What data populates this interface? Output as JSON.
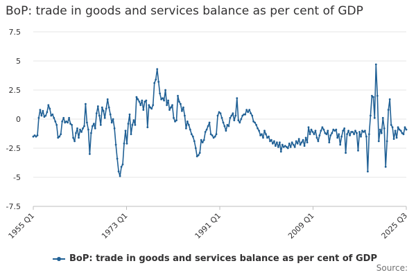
{
  "chart_data": {
    "type": "line",
    "title": "BoP: trade in goods and services balance as per cent of GDP",
    "xlabel": "",
    "ylabel": "",
    "x_start": "1955 Q1",
    "x_end": "2025 Q3",
    "x_tick_labels": [
      "1955 Q1",
      "1973 Q1",
      "1991 Q1",
      "2009 Q1",
      "2025 Q3"
    ],
    "y_tick_labels": [
      "7.5",
      "5",
      "2.5",
      "0",
      "-2.5",
      "-5",
      "-7.5"
    ],
    "ylim": [
      -7.5,
      7.5
    ],
    "grid": true,
    "legend_position": "bottom",
    "color": "#206095",
    "series": [
      {
        "name": "BoP: trade in goods and services balance as per cent of GDP",
        "values": [
          -1.5,
          -1.4,
          -1.5,
          -1.4,
          0.1,
          0.8,
          0.3,
          0.7,
          0.2,
          0.3,
          0.6,
          1.2,
          0.9,
          0.3,
          0.4,
          0.1,
          -0.2,
          -0.5,
          -1.6,
          -1.5,
          -1.3,
          -0.2,
          0.1,
          -0.3,
          -0.2,
          -0.3,
          0.1,
          -0.4,
          -0.5,
          -1.6,
          -1.9,
          -1.2,
          -0.8,
          -1.6,
          -0.9,
          -1.1,
          -0.8,
          -0.6,
          1.3,
          -0.3,
          -0.9,
          -3.0,
          -1.2,
          -0.6,
          -0.4,
          -0.8,
          0.5,
          1.1,
          0.3,
          -0.5,
          1.0,
          0.7,
          0.1,
          0.9,
          1.7,
          1.0,
          0.4,
          -0.3,
          0.0,
          -0.8,
          -2.2,
          -3.4,
          -4.5,
          -4.9,
          -4.1,
          -3.9,
          -2.1,
          -1.0,
          -2.1,
          -0.4,
          0.4,
          -1.3,
          -0.5,
          -0.1,
          -0.5,
          1.9,
          1.7,
          1.5,
          1.2,
          1.6,
          0.8,
          1.5,
          1.6,
          -0.7,
          1.2,
          1.0,
          0.9,
          1.2,
          3.1,
          3.4,
          4.3,
          3.2,
          2.2,
          1.7,
          1.8,
          1.6,
          2.5,
          1.2,
          1.6,
          0.8,
          1.0,
          1.2,
          0.1,
          -0.2,
          -0.1,
          2.0,
          1.5,
          1.3,
          0.7,
          1.0,
          0.3,
          -0.8,
          -0.2,
          -0.5,
          -0.9,
          -1.3,
          -1.5,
          -1.9,
          -2.5,
          -3.2,
          -3.1,
          -2.9,
          -1.8,
          -2.0,
          -1.8,
          -1.1,
          -0.9,
          -0.6,
          -0.3,
          -1.3,
          -1.4,
          -1.6,
          -1.5,
          -1.3,
          0.3,
          0.6,
          0.5,
          0.1,
          -0.3,
          -0.6,
          -1.0,
          -0.5,
          -0.6,
          0.1,
          0.3,
          0.5,
          -0.1,
          0.3,
          1.8,
          -0.1,
          -0.3,
          0.0,
          0.3,
          0.4,
          0.4,
          0.8,
          0.6,
          0.8,
          0.5,
          0.3,
          -0.2,
          -0.3,
          -0.5,
          -0.8,
          -1.0,
          -1.4,
          -1.3,
          -1.6,
          -1.0,
          -1.3,
          -1.6,
          -1.5,
          -1.9,
          -1.8,
          -2.1,
          -1.9,
          -2.3,
          -2.0,
          -2.4,
          -2.0,
          -2.8,
          -2.2,
          -2.4,
          -2.3,
          -2.4,
          -2.5,
          -2.1,
          -2.4,
          -2.0,
          -2.2,
          -2.4,
          -1.9,
          -2.1,
          -1.7,
          -2.2,
          -2.0,
          -1.8,
          -2.3,
          -1.6,
          -2.0,
          -0.7,
          -1.3,
          -0.9,
          -1.1,
          -1.3,
          -1.0,
          -1.6,
          -1.9,
          -1.4,
          -1.0,
          -0.7,
          -0.9,
          -1.2,
          -1.3,
          -1.0,
          -2.0,
          -1.4,
          -1.2,
          -0.9,
          -1.0,
          -0.9,
          -1.6,
          -1.3,
          -2.2,
          -1.5,
          -1.0,
          -0.8,
          -2.9,
          -1.3,
          -1.0,
          -1.4,
          -1.1,
          -1.1,
          -1.3,
          -1.0,
          -1.2,
          -2.7,
          -1.1,
          -1.5,
          -1.0,
          -1.1,
          -1.0,
          -1.5,
          -4.5,
          -1.3,
          0.3,
          2.0,
          1.9,
          0.1,
          4.7,
          2.0,
          -1.9,
          -0.9,
          -1.2,
          0.1,
          -0.8,
          -4.1,
          -1.9,
          0.8,
          1.7,
          -0.5,
          -0.7,
          -1.7,
          -1.0,
          -1.6,
          -0.7,
          -0.9,
          -1.0,
          -1.2,
          -1.3,
          -0.7,
          -0.9
        ]
      }
    ],
    "source_label": "Source:"
  }
}
